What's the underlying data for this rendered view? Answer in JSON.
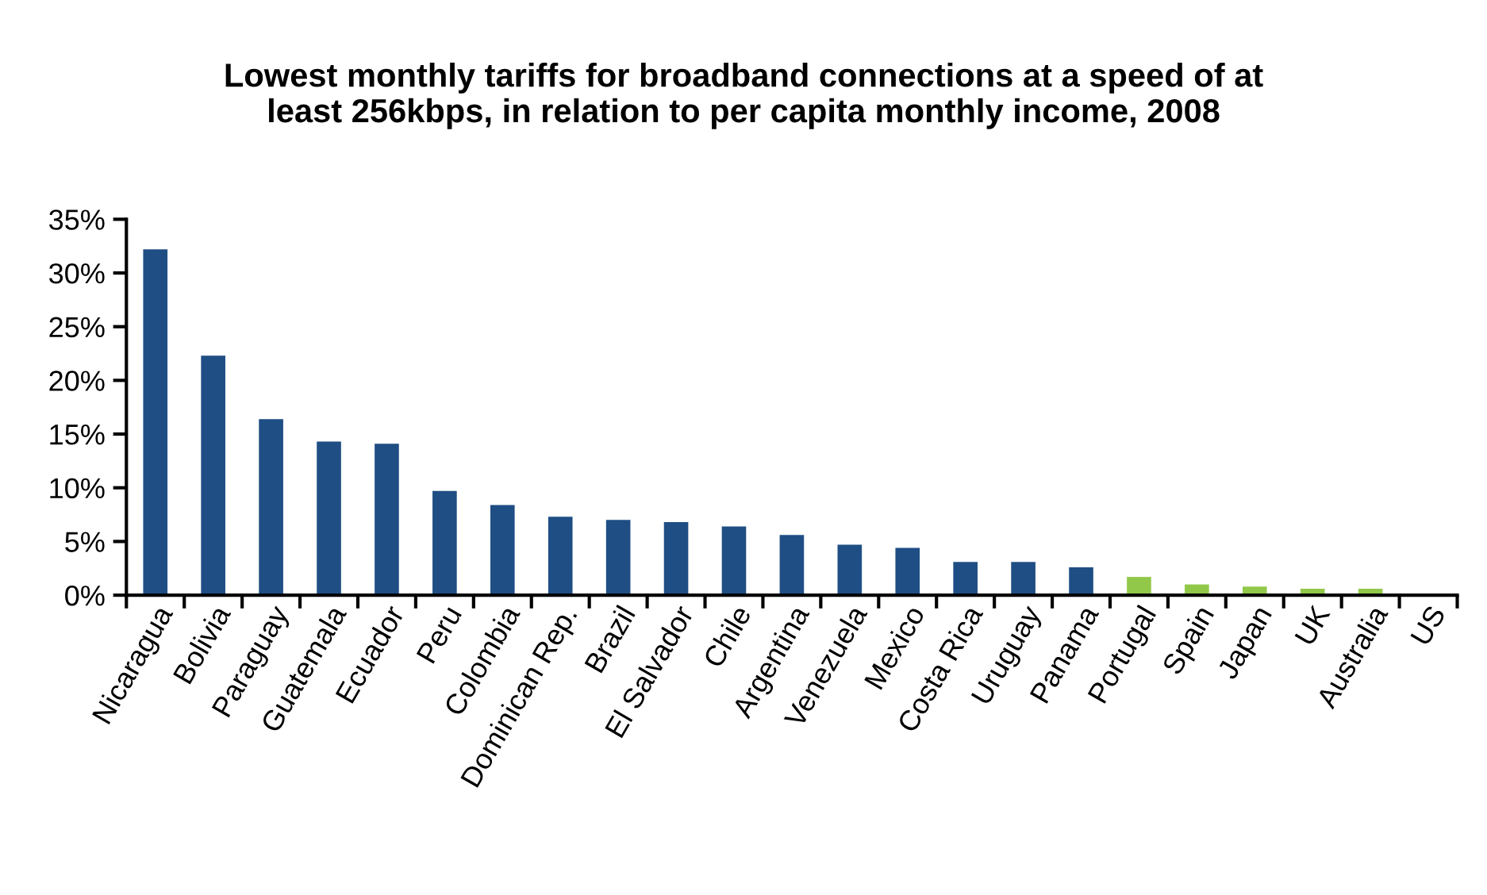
{
  "chart_data": {
    "type": "bar",
    "title": "Lowest monthly tariffs for broadband connections at a speed of at\nleast 256kbps, in relation to per capita monthly income, 2008",
    "categories": [
      "Nicaragua",
      "Bolivia",
      "Paraguay",
      "Guatemala",
      "Ecuador",
      "Peru",
      "Colombia",
      "Dominican Rep.",
      "Brazil",
      "El Salvador",
      "Chile",
      "Argentina",
      "Venezuela",
      "Mexico",
      "Costa Rica",
      "Uruguay",
      "Panama",
      "Portugal",
      "Spain",
      "Japan",
      "UK",
      "Australia",
      "US"
    ],
    "values": [
      32.2,
      22.3,
      16.4,
      14.3,
      14.1,
      9.7,
      8.4,
      7.3,
      7.0,
      6.8,
      6.4,
      5.6,
      4.7,
      4.4,
      3.1,
      3.1,
      2.6,
      1.7,
      1.0,
      0.8,
      0.6,
      0.6,
      null
    ],
    "colors": [
      "#1f4e84",
      "#1f4e84",
      "#1f4e84",
      "#1f4e84",
      "#1f4e84",
      "#1f4e84",
      "#1f4e84",
      "#1f4e84",
      "#1f4e84",
      "#1f4e84",
      "#1f4e84",
      "#1f4e84",
      "#1f4e84",
      "#1f4e84",
      "#1f4e84",
      "#1f4e84",
      "#1f4e84",
      "#92c84a",
      "#92c84a",
      "#92c84a",
      "#92c84a",
      "#92c84a",
      "#92c84a"
    ],
    "ylim": [
      0,
      35
    ],
    "yticks": [
      {
        "value": 0,
        "label": "0%"
      },
      {
        "value": 5,
        "label": "5%"
      },
      {
        "value": 10,
        "label": "10%"
      },
      {
        "value": 15,
        "label": "15%"
      },
      {
        "value": 20,
        "label": "20%"
      },
      {
        "value": 25,
        "label": "25%"
      },
      {
        "value": 30,
        "label": "30%"
      },
      {
        "value": 35,
        "label": "35%"
      }
    ],
    "grid": false
  }
}
